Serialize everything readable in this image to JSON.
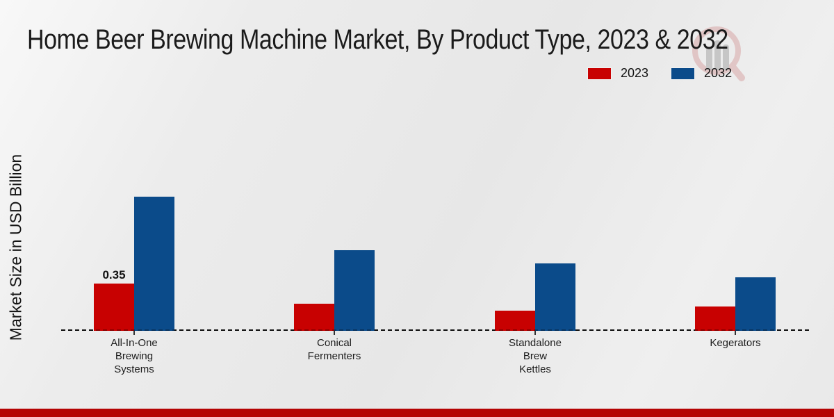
{
  "title": "Home Beer Brewing Machine Market, By Product Type, 2023 & 2032",
  "ylabel": "Market Size in USD Billion",
  "legend": {
    "position": "top-right",
    "items": [
      {
        "label": "2023",
        "color": "#c80101"
      },
      {
        "label": "2032",
        "color": "#0b4b8a"
      }
    ]
  },
  "watermark": {
    "name": "market-research-future-logo",
    "ring_color": "#d8a7a7",
    "bars_color": "#a8a8a8"
  },
  "footer": {
    "bar_color": "#b50404"
  },
  "chart_data": {
    "type": "bar",
    "title": "Home Beer Brewing Machine Market, By Product Type, 2023 & 2032",
    "xlabel": "",
    "ylabel": "Market Size in USD Billion",
    "ylim": [
      0,
      1.0
    ],
    "grid": false,
    "legend_position": "top-right",
    "axis_style": "dashed-baseline-only",
    "categories": [
      "All-In-One\nBrewing\nSystems",
      "Conical\nFermenters",
      "Standalone\nBrew\nKettles",
      "Kegerators"
    ],
    "series": [
      {
        "name": "2023",
        "color": "#c80101",
        "values": [
          0.35,
          0.2,
          0.15,
          0.18
        ]
      },
      {
        "name": "2032",
        "color": "#0b4b8a",
        "values": [
          1.0,
          0.6,
          0.5,
          0.4
        ]
      }
    ],
    "annotations": [
      {
        "series": "2023",
        "category_index": 0,
        "text": "0.35"
      }
    ]
  }
}
